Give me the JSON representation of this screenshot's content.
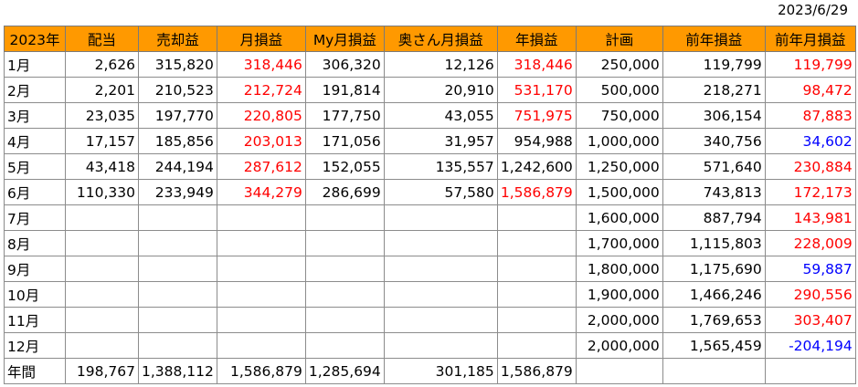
{
  "date": "2023/6/29",
  "headers": [
    "2023年",
    "配当",
    "売却益",
    "月損益",
    "My月損益",
    "奥さん月損益",
    "年損益",
    "計画",
    "前年損益",
    "前年月損益"
  ],
  "colors": {
    "header_bg": "#ff9900",
    "positive_red": "#ff0000",
    "negative_blue": "#0000ff"
  },
  "rows": [
    {
      "month": "1月",
      "cells": [
        "2,626",
        "315,820",
        "318,446",
        "306,320",
        "12,126",
        "318,446",
        "250,000",
        "119,799",
        "119,799"
      ]
    },
    {
      "month": "2月",
      "cells": [
        "2,201",
        "210,523",
        "212,724",
        "191,814",
        "20,910",
        "531,170",
        "500,000",
        "218,271",
        "98,472"
      ]
    },
    {
      "month": "3月",
      "cells": [
        "23,035",
        "197,770",
        "220,805",
        "177,750",
        "43,055",
        "751,975",
        "750,000",
        "306,154",
        "87,883"
      ]
    },
    {
      "month": "4月",
      "cells": [
        "17,157",
        "185,856",
        "203,013",
        "171,056",
        "31,957",
        "954,988",
        "1,000,000",
        "340,756",
        "34,602"
      ]
    },
    {
      "month": "5月",
      "cells": [
        "43,418",
        "244,194",
        "287,612",
        "152,055",
        "135,557",
        "1,242,600",
        "1,250,000",
        "571,640",
        "230,884"
      ]
    },
    {
      "month": "6月",
      "cells": [
        "110,330",
        "233,949",
        "344,279",
        "286,699",
        "57,580",
        "1,586,879",
        "1,500,000",
        "743,813",
        "172,173"
      ]
    },
    {
      "month": "7月",
      "cells": [
        "",
        "",
        "",
        "",
        "",
        "",
        "1,600,000",
        "887,794",
        "143,981"
      ]
    },
    {
      "month": "8月",
      "cells": [
        "",
        "",
        "",
        "",
        "",
        "",
        "1,700,000",
        "1,115,803",
        "228,009"
      ]
    },
    {
      "month": "9月",
      "cells": [
        "",
        "",
        "",
        "",
        "",
        "",
        "1,800,000",
        "1,175,690",
        "59,887"
      ]
    },
    {
      "month": "10月",
      "cells": [
        "",
        "",
        "",
        "",
        "",
        "",
        "1,900,000",
        "1,466,246",
        "290,556"
      ]
    },
    {
      "month": "11月",
      "cells": [
        "",
        "",
        "",
        "",
        "",
        "",
        "2,000,000",
        "1,769,653",
        "303,407"
      ]
    },
    {
      "month": "12月",
      "cells": [
        "",
        "",
        "",
        "",
        "",
        "",
        "2,000,000",
        "1,565,459",
        "-204,194"
      ]
    },
    {
      "month": "年間",
      "cells": [
        "198,767",
        "1,388,112",
        "1,586,879",
        "1,285,694",
        "301,185",
        "1,586,879",
        "",
        "",
        ""
      ]
    }
  ]
}
